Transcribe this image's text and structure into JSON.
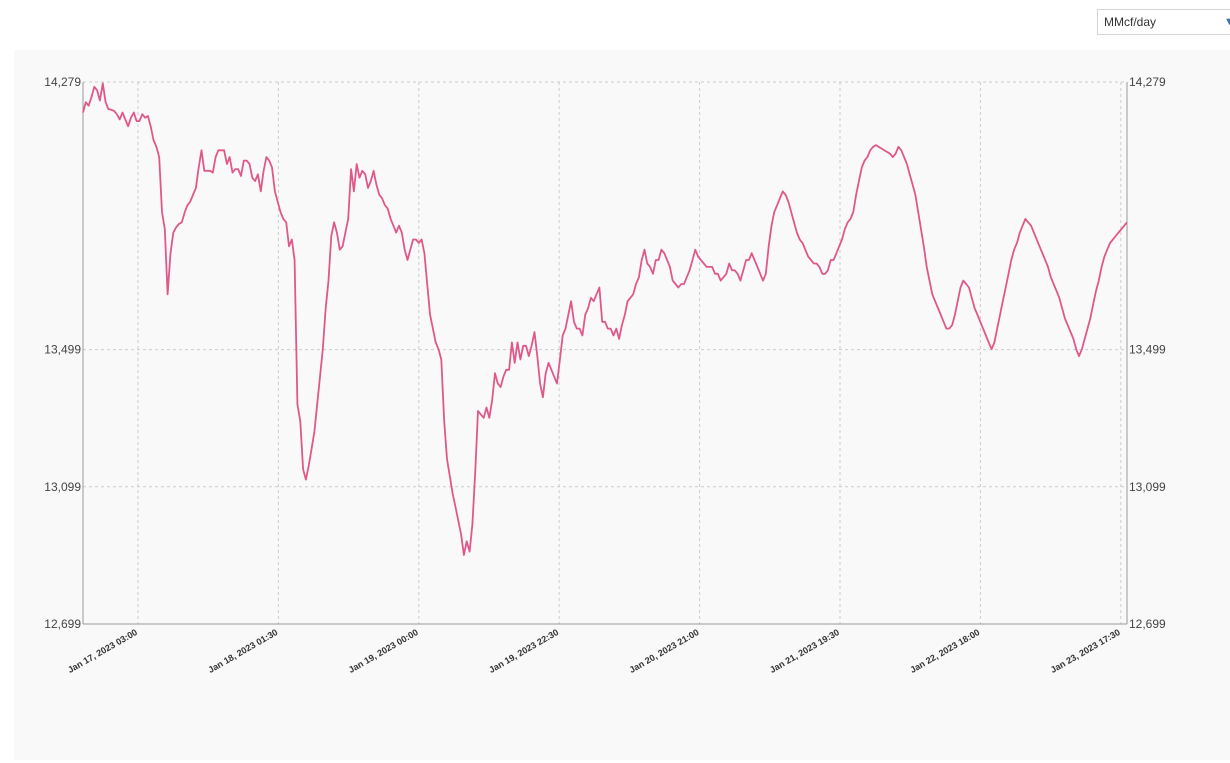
{
  "unit_select": {
    "value": "MMcf/day"
  },
  "chart_data": {
    "type": "line",
    "grid": true,
    "colors": {
      "line": "#e0588a",
      "grid": "#cccccc",
      "axis": "#999999",
      "panel": "#f9f9f9"
    },
    "ylim": [
      12699,
      14279
    ],
    "y_ticks": [
      {
        "value": 12699,
        "label": "12,699"
      },
      {
        "value": 13099,
        "label": "13,099"
      },
      {
        "value": 13499,
        "label": "13,499"
      },
      {
        "value": 14279,
        "label": "14,279"
      }
    ],
    "x_ticks": [
      "Jan 17, 2023 03:00",
      "Jan 18, 2023 01:30",
      "Jan 19, 2023 00:00",
      "Jan 19, 2023 22:30",
      "Jan 20, 2023 21:00",
      "Jan 21, 2023 19:30",
      "Jan 22, 2023 18:00",
      "Jan 23, 2023 17:30"
    ],
    "series": [
      {
        "values": [
          14190,
          14220,
          14210,
          14235,
          14265,
          14255,
          14225,
          14275,
          14220,
          14200,
          14198,
          14195,
          14185,
          14170,
          14190,
          14170,
          14150,
          14175,
          14190,
          14165,
          14165,
          14185,
          14175,
          14180,
          14150,
          14110,
          14090,
          14060,
          13900,
          13850,
          13660,
          13780,
          13840,
          13855,
          13865,
          13870,
          13898,
          13920,
          13930,
          13950,
          13970,
          14030,
          14080,
          14020,
          14020,
          14020,
          14015,
          14060,
          14080,
          14080,
          14080,
          14040,
          14060,
          14015,
          14025,
          14025,
          14005,
          14050,
          14050,
          14040,
          14000,
          13990,
          14010,
          13960,
          14020,
          14060,
          14050,
          14030,
          13960,
          13930,
          13900,
          13880,
          13870,
          13800,
          13820,
          13760,
          13340,
          13290,
          13150,
          13120,
          13160,
          13210,
          13260,
          13340,
          13420,
          13500,
          13620,
          13700,
          13830,
          13870,
          13840,
          13790,
          13800,
          13840,
          13880,
          14025,
          13960,
          14040,
          14000,
          14020,
          14010,
          13970,
          13990,
          14020,
          13980,
          13950,
          13940,
          13920,
          13910,
          13880,
          13860,
          13840,
          13860,
          13840,
          13790,
          13760,
          13790,
          13820,
          13820,
          13810,
          13820,
          13780,
          13690,
          13600,
          13560,
          13520,
          13500,
          13470,
          13290,
          13180,
          13130,
          13080,
          13040,
          13000,
          12960,
          12900,
          12940,
          12910,
          12990,
          13140,
          13320,
          13310,
          13300,
          13330,
          13300,
          13350,
          13430,
          13400,
          13390,
          13420,
          13440,
          13440,
          13520,
          13460,
          13520,
          13470,
          13510,
          13510,
          13480,
          13510,
          13550,
          13480,
          13400,
          13360,
          13430,
          13460,
          13440,
          13420,
          13400,
          13470,
          13540,
          13560,
          13600,
          13640,
          13580,
          13560,
          13560,
          13540,
          13600,
          13620,
          13650,
          13640,
          13660,
          13680,
          13580,
          13580,
          13560,
          13560,
          13540,
          13560,
          13530,
          13570,
          13600,
          13640,
          13650,
          13660,
          13690,
          13710,
          13760,
          13790,
          13750,
          13740,
          13720,
          13760,
          13760,
          13790,
          13780,
          13760,
          13740,
          13700,
          13690,
          13680,
          13690,
          13690,
          13710,
          13730,
          13760,
          13790,
          13770,
          13760,
          13750,
          13740,
          13740,
          13740,
          13720,
          13720,
          13700,
          13710,
          13720,
          13750,
          13730,
          13730,
          13720,
          13700,
          13730,
          13760,
          13760,
          13780,
          13760,
          13740,
          13720,
          13700,
          13720,
          13800,
          13860,
          13900,
          13920,
          13940,
          13960,
          13950,
          13930,
          13900,
          13870,
          13840,
          13820,
          13810,
          13790,
          13770,
          13760,
          13750,
          13750,
          13740,
          13720,
          13720,
          13730,
          13760,
          13760,
          13780,
          13800,
          13820,
          13850,
          13870,
          13880,
          13900,
          13950,
          13990,
          14030,
          14050,
          14060,
          14080,
          14090,
          14095,
          14090,
          14085,
          14080,
          14075,
          14070,
          14060,
          14070,
          14090,
          14080,
          14060,
          14040,
          14010,
          13980,
          13950,
          13900,
          13850,
          13800,
          13740,
          13700,
          13660,
          13640,
          13620,
          13600,
          13580,
          13560,
          13560,
          13570,
          13600,
          13640,
          13680,
          13700,
          13690,
          13680,
          13650,
          13620,
          13600,
          13580,
          13560,
          13540,
          13520,
          13500,
          13520,
          13560,
          13600,
          13640,
          13680,
          13720,
          13760,
          13790,
          13810,
          13840,
          13860,
          13880,
          13870,
          13860,
          13840,
          13820,
          13800,
          13780,
          13760,
          13740,
          13710,
          13690,
          13670,
          13650,
          13620,
          13590,
          13570,
          13550,
          13530,
          13500,
          13480,
          13500,
          13530,
          13560,
          13590,
          13630,
          13670,
          13700,
          13740,
          13770,
          13790,
          13810,
          13820,
          13830,
          13840,
          13850,
          13860,
          13870
        ]
      }
    ]
  }
}
